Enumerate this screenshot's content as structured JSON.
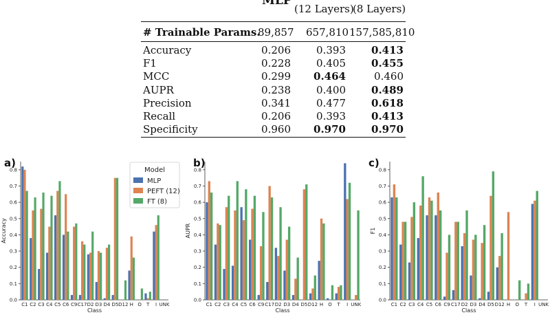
{
  "table": {
    "header": {
      "mlp": "MLP",
      "peft_sub": "(12 Layers)",
      "ft_sub": "(8 Layers)"
    },
    "params": {
      "label": "# Trainable Params.",
      "mlp": "89,857",
      "peft": "657,810",
      "ft": "157,585,810"
    },
    "rows": [
      {
        "label": "Accuracy",
        "mlp": "0.206",
        "peft": "0.393",
        "ft": "0.413",
        "bold": "ft"
      },
      {
        "label": "F1",
        "mlp": "0.228",
        "peft": "0.405",
        "ft": "0.455",
        "bold": "ft"
      },
      {
        "label": "MCC",
        "mlp": "0.299",
        "peft": "0.464",
        "ft": "0.460",
        "bold": "peft"
      },
      {
        "label": "AUPR",
        "mlp": "0.238",
        "peft": "0.400",
        "ft": "0.489",
        "bold": "ft"
      },
      {
        "label": "Precision",
        "mlp": "0.341",
        "peft": "0.477",
        "ft": "0.618",
        "bold": "ft"
      },
      {
        "label": "Recall",
        "mlp": "0.206",
        "peft": "0.393",
        "ft": "0.413",
        "bold": "ft"
      },
      {
        "label": "Specificity",
        "mlp": "0.960",
        "peft": "0.970",
        "ft": "0.970",
        "bold": "both"
      }
    ]
  },
  "legend": {
    "title": "Model",
    "items": [
      "MLP",
      "PEFT (12)",
      "FT (8)"
    ]
  },
  "colors": {
    "mlp": "#4c72b0",
    "peft": "#dd8452",
    "ft": "#55a868"
  },
  "chart_data": [
    {
      "type": "bar",
      "panel": "a)",
      "xlabel": "Class",
      "ylabel": "Accuracy",
      "ylim": [
        0,
        0.85
      ],
      "yticks": [
        "0.0",
        "0.1",
        "0.2",
        "0.3",
        "0.4",
        "0.5",
        "0.6",
        "0.7",
        "0.8"
      ],
      "categories": [
        "C1",
        "C2",
        "C3",
        "C4",
        "C5",
        "C6",
        "C9",
        "C17",
        "D2",
        "D3",
        "D4",
        "D5",
        "D12",
        "H",
        "O",
        "T",
        "I",
        "UNK"
      ],
      "series": [
        {
          "name": "MLP",
          "values": [
            0.82,
            0.38,
            0.19,
            0.29,
            0.52,
            0.4,
            0.03,
            0.03,
            0.28,
            0.11,
            0.01,
            0.03,
            0.0,
            0.18,
            0.0,
            0.04,
            0.42,
            0.0
          ]
        },
        {
          "name": "PEFT (12)",
          "values": [
            0.8,
            0.55,
            0.56,
            0.45,
            0.67,
            0.65,
            0.45,
            0.36,
            0.29,
            0.3,
            0.32,
            0.75,
            0.0,
            0.39,
            0.0,
            0.01,
            0.46,
            0.0
          ]
        },
        {
          "name": "FT (8)",
          "values": [
            0.67,
            0.63,
            0.66,
            0.64,
            0.73,
            0.42,
            0.47,
            0.34,
            0.42,
            0.29,
            0.34,
            0.75,
            0.12,
            0.26,
            0.07,
            0.05,
            0.52,
            0.0
          ]
        }
      ]
    },
    {
      "type": "bar",
      "panel": "b)",
      "xlabel": "Class",
      "ylabel": "AUPR",
      "ylim": [
        0,
        0.85
      ],
      "yticks": [
        "0.0",
        "0.1",
        "0.2",
        "0.3",
        "0.4",
        "0.5",
        "0.6",
        "0.7",
        "0.8"
      ],
      "categories": [
        "C1",
        "C2",
        "C3",
        "C4",
        "C5",
        "C6",
        "C9",
        "C17",
        "D2",
        "D3",
        "D4",
        "D5",
        "D12",
        "H",
        "O",
        "T",
        "I",
        "UNK"
      ],
      "series": [
        {
          "name": "MLP",
          "values": [
            0.6,
            0.34,
            0.19,
            0.21,
            0.57,
            0.37,
            0.03,
            0.11,
            0.32,
            0.18,
            0.03,
            0.0,
            0.04,
            0.24,
            0.01,
            0.04,
            0.84,
            0.0
          ]
        },
        {
          "name": "PEFT (12)",
          "values": [
            0.73,
            0.47,
            0.57,
            0.55,
            0.49,
            0.56,
            0.33,
            0.7,
            0.27,
            0.37,
            0.13,
            0.68,
            0.07,
            0.5,
            0.0,
            0.08,
            0.62,
            0.03
          ]
        },
        {
          "name": "FT (8)",
          "values": [
            0.66,
            0.46,
            0.64,
            0.73,
            0.68,
            0.64,
            0.54,
            0.63,
            0.57,
            0.45,
            0.26,
            0.71,
            0.15,
            0.47,
            0.09,
            0.09,
            0.72,
            0.55
          ]
        }
      ]
    },
    {
      "type": "bar",
      "panel": "c)",
      "xlabel": "Class",
      "ylabel": "F1",
      "ylim": [
        0,
        0.85
      ],
      "yticks": [
        "0.0",
        "0.1",
        "0.2",
        "0.3",
        "0.4",
        "0.5",
        "0.6",
        "0.7",
        "0.8"
      ],
      "categories": [
        "C1",
        "C2",
        "C3",
        "C4",
        "C5",
        "C6",
        "C9",
        "C17",
        "D2",
        "D3",
        "D4",
        "D5",
        "D12",
        "H",
        "O",
        "T",
        "I",
        "UNK"
      ],
      "series": [
        {
          "name": "MLP",
          "values": [
            0.63,
            0.34,
            0.23,
            0.38,
            0.52,
            0.52,
            0.02,
            0.06,
            0.33,
            0.15,
            0.01,
            0.05,
            0.2,
            0.0,
            0.0,
            0.0,
            0.59,
            0.0
          ]
        },
        {
          "name": "PEFT (12)",
          "values": [
            0.71,
            0.48,
            0.51,
            0.58,
            0.63,
            0.66,
            0.29,
            0.48,
            0.41,
            0.37,
            0.35,
            0.64,
            0.27,
            0.54,
            0.0,
            0.04,
            0.61,
            0.0
          ]
        },
        {
          "name": "FT (8)",
          "values": [
            0.63,
            0.48,
            0.6,
            0.76,
            0.61,
            0.55,
            0.4,
            0.48,
            0.55,
            0.4,
            0.46,
            0.79,
            0.41,
            0.0,
            0.12,
            0.1,
            0.67,
            0.0
          ]
        }
      ]
    }
  ]
}
